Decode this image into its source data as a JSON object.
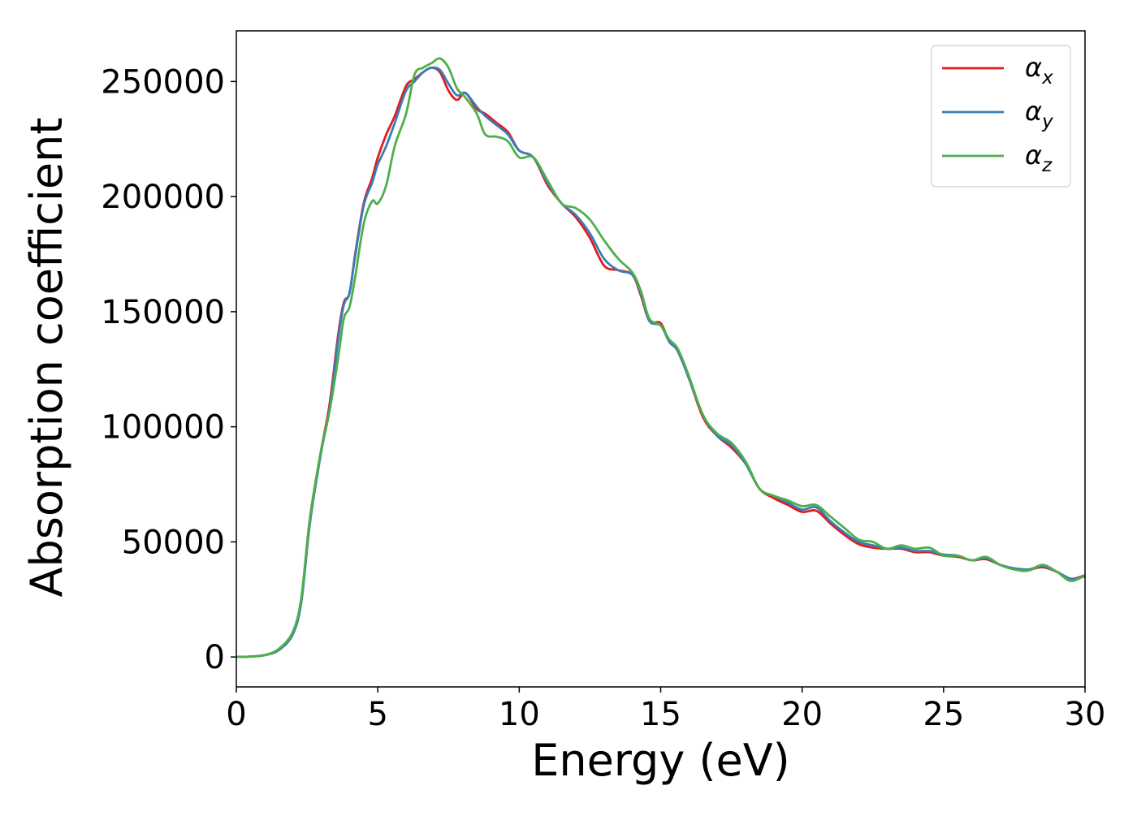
{
  "chart_data": {
    "type": "line",
    "title": "",
    "xlabel": "Energy (eV)",
    "ylabel": "Absorption coefficient",
    "xlim": [
      0,
      30
    ],
    "ylim": [
      -13000,
      272000
    ],
    "xticks": [
      0,
      5,
      10,
      15,
      20,
      25,
      30
    ],
    "yticks": [
      0,
      50000,
      100000,
      150000,
      200000,
      250000
    ],
    "grid": false,
    "legend_position": "top-right",
    "series": [
      {
        "name": "αx",
        "label_base": "α",
        "label_sub": "x",
        "color": "#e41a1c",
        "x": [
          0,
          0.5,
          1,
          1.5,
          2,
          2.3,
          2.6,
          3,
          3.3,
          3.6,
          3.8,
          4,
          4.2,
          4.5,
          4.8,
          5,
          5.3,
          5.6,
          6,
          6.3,
          6.6,
          6.9,
          7.2,
          7.5,
          7.8,
          8.1,
          8.5,
          8.8,
          9.2,
          9.6,
          10,
          10.5,
          11,
          11.5,
          12,
          12.5,
          13,
          13.5,
          14,
          14.3,
          14.6,
          15,
          15.3,
          15.6,
          16,
          16.5,
          17,
          17.5,
          18,
          18.5,
          19,
          19.5,
          20,
          20.5,
          21,
          21.5,
          22,
          22.5,
          23,
          23.5,
          24,
          24.5,
          25,
          25.5,
          26,
          26.5,
          27,
          27.5,
          28,
          28.5,
          29,
          29.5,
          30
        ],
        "y": [
          0,
          200,
          800,
          3000,
          10000,
          25000,
          60000,
          90000,
          110000,
          140000,
          154000,
          158000,
          175000,
          197000,
          208000,
          217000,
          227000,
          235000,
          248000,
          251000,
          254000,
          256000,
          254000,
          246000,
          242000,
          245000,
          238000,
          236000,
          232000,
          228000,
          220000,
          217000,
          205000,
          197000,
          191000,
          182000,
          170000,
          168000,
          166000,
          157000,
          146000,
          145000,
          137000,
          133000,
          121000,
          104000,
          96000,
          91000,
          84000,
          73000,
          69000,
          66000,
          63000,
          63500,
          58000,
          53000,
          49000,
          47500,
          47000,
          47000,
          45500,
          45500,
          44000,
          43500,
          42000,
          42500,
          40000,
          38500,
          38000,
          39000,
          37000,
          34000,
          35500
        ]
      },
      {
        "name": "αy",
        "label_base": "α",
        "label_sub": "y",
        "color": "#377eb8",
        "x": [
          0,
          0.5,
          1,
          1.5,
          2,
          2.3,
          2.6,
          3,
          3.3,
          3.6,
          3.8,
          4,
          4.2,
          4.5,
          4.8,
          5,
          5.3,
          5.6,
          6,
          6.3,
          6.6,
          6.9,
          7.2,
          7.5,
          7.8,
          8.1,
          8.5,
          8.8,
          9.2,
          9.6,
          10,
          10.5,
          11,
          11.5,
          12,
          12.5,
          13,
          13.5,
          14,
          14.3,
          14.6,
          15,
          15.3,
          15.6,
          16,
          16.5,
          17,
          17.5,
          18,
          18.5,
          19,
          19.5,
          20,
          20.5,
          21,
          21.5,
          22,
          22.5,
          23,
          23.5,
          24,
          24.5,
          25,
          25.5,
          26,
          26.5,
          27,
          27.5,
          28,
          28.5,
          29,
          29.5,
          30
        ],
        "y": [
          0,
          200,
          800,
          3000,
          10000,
          24000,
          58000,
          89000,
          108000,
          138000,
          153000,
          158000,
          174000,
          196000,
          206000,
          214000,
          222000,
          232000,
          246000,
          250000,
          254000,
          256000,
          255000,
          249000,
          244000,
          245000,
          239000,
          235000,
          231000,
          227000,
          220000,
          217000,
          206000,
          197000,
          192000,
          184000,
          173000,
          168000,
          166000,
          158000,
          146000,
          144000,
          137000,
          133000,
          121000,
          105000,
          96000,
          92000,
          84000,
          73000,
          70000,
          67000,
          64000,
          65000,
          59000,
          54000,
          50000,
          48500,
          47000,
          47500,
          46000,
          46000,
          44500,
          44000,
          42000,
          43000,
          40000,
          38500,
          38000,
          39500,
          37000,
          34000,
          35000
        ]
      },
      {
        "name": "αz",
        "label_base": "α",
        "label_sub": "z",
        "color": "#4daf4a",
        "x": [
          0,
          0.5,
          1,
          1.5,
          2,
          2.3,
          2.6,
          3,
          3.3,
          3.6,
          3.8,
          4,
          4.2,
          4.5,
          4.8,
          5,
          5.3,
          5.6,
          6,
          6.3,
          6.6,
          6.9,
          7.2,
          7.5,
          7.8,
          8.1,
          8.5,
          8.8,
          9.2,
          9.6,
          10,
          10.5,
          11,
          11.5,
          12,
          12.5,
          13,
          13.5,
          14,
          14.3,
          14.6,
          15,
          15.3,
          15.6,
          16,
          16.5,
          17,
          17.5,
          18,
          18.5,
          19,
          19.5,
          20,
          20.5,
          21,
          21.5,
          22,
          22.5,
          23,
          23.5,
          24,
          24.5,
          25,
          25.5,
          26,
          26.5,
          27,
          27.5,
          28,
          28.5,
          29,
          29.5,
          30
        ],
        "y": [
          0,
          200,
          800,
          3500,
          11000,
          26000,
          60000,
          90000,
          107000,
          130000,
          147000,
          152000,
          165000,
          188000,
          198000,
          197000,
          205000,
          222000,
          236000,
          253000,
          256000,
          258000,
          260000,
          256000,
          247000,
          243000,
          236000,
          227000,
          226000,
          224000,
          217000,
          217000,
          207000,
          197000,
          195000,
          190000,
          181000,
          173000,
          167000,
          159000,
          147000,
          144000,
          138000,
          134000,
          122000,
          105000,
          97000,
          93000,
          85000,
          73000,
          70000,
          68000,
          65500,
          66000,
          61000,
          56000,
          51000,
          50000,
          47000,
          48500,
          47000,
          47500,
          44000,
          44000,
          42000,
          43500,
          40000,
          38000,
          37500,
          40000,
          37000,
          33000,
          35500
        ]
      }
    ]
  }
}
